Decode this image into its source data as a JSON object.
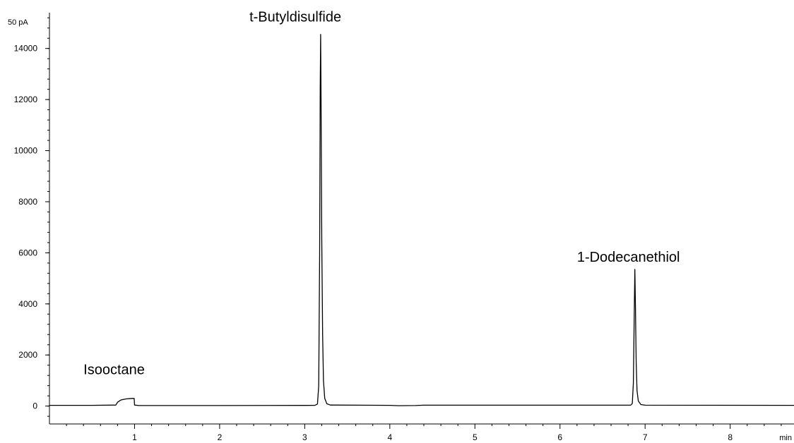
{
  "chart_data": {
    "type": "line",
    "title": "",
    "xlabel": "",
    "ylabel": "",
    "x_unit": "min",
    "y_unit": "50 pA",
    "xlim": [
      0,
      8.75
    ],
    "ylim": [
      -700,
      15400
    ],
    "grid": false,
    "x_ticks_major": [
      1,
      2,
      3,
      4,
      5,
      6,
      7,
      8
    ],
    "x_tick_labels": [
      "1",
      "2",
      "3",
      "4",
      "5",
      "6",
      "7",
      "8"
    ],
    "x_minor_step": 0.2,
    "y_ticks_major": [
      0,
      2000,
      4000,
      6000,
      8000,
      10000,
      12000,
      14000
    ],
    "y_tick_labels": [
      "0",
      "2000",
      "4000",
      "6000",
      "8000",
      "10000",
      "12000",
      "14000"
    ],
    "y_minor_step": 400,
    "series": [
      {
        "points": [
          [
            0,
            30
          ],
          [
            0.5,
            30
          ],
          [
            0.78,
            40
          ],
          [
            0.8,
            150
          ],
          [
            0.84,
            240
          ],
          [
            0.9,
            280
          ],
          [
            0.97,
            300
          ],
          [
            0.995,
            300
          ],
          [
            1.0,
            40
          ],
          [
            1.05,
            20
          ],
          [
            2.0,
            20
          ],
          [
            3.0,
            25
          ],
          [
            3.12,
            30
          ],
          [
            3.15,
            80
          ],
          [
            3.165,
            800
          ],
          [
            3.175,
            6000
          ],
          [
            3.182,
            12500
          ],
          [
            3.187,
            14550
          ],
          [
            3.192,
            12000
          ],
          [
            3.2,
            6500
          ],
          [
            3.21,
            2800
          ],
          [
            3.22,
            1000
          ],
          [
            3.235,
            300
          ],
          [
            3.26,
            90
          ],
          [
            3.3,
            40
          ],
          [
            4.0,
            30
          ],
          [
            4.1,
            15
          ],
          [
            4.3,
            20
          ],
          [
            4.4,
            35
          ],
          [
            6.0,
            35
          ],
          [
            6.83,
            35
          ],
          [
            6.85,
            100
          ],
          [
            6.862,
            900
          ],
          [
            6.872,
            3500
          ],
          [
            6.88,
            5350
          ],
          [
            6.887,
            3800
          ],
          [
            6.895,
            1700
          ],
          [
            6.905,
            600
          ],
          [
            6.92,
            200
          ],
          [
            6.95,
            60
          ],
          [
            7.0,
            35
          ],
          [
            8.75,
            30
          ]
        ]
      }
    ],
    "annotations": [
      {
        "text": "Isooctane",
        "x": 0.4,
        "y": 1250
      },
      {
        "text": "t-Butyldisulfide",
        "x": 2.35,
        "y": 15050
      },
      {
        "text": "1-Dodecanethiol",
        "x": 6.2,
        "y": 5650
      }
    ]
  }
}
